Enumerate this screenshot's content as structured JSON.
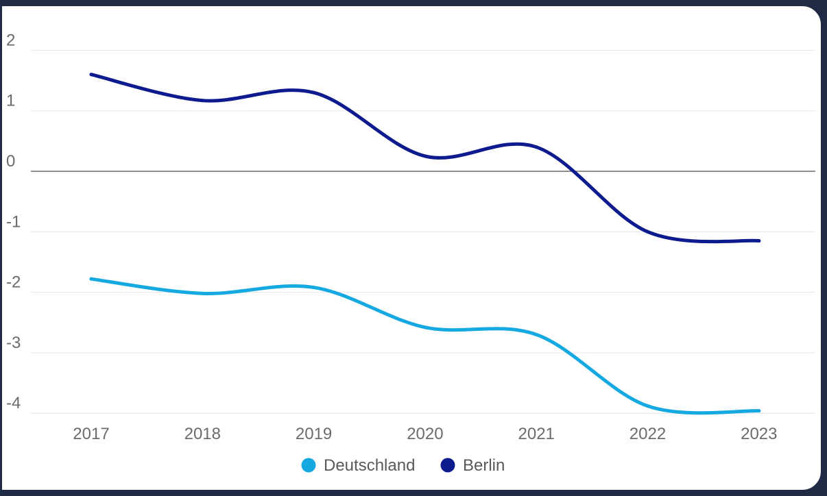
{
  "chart_data": {
    "type": "line",
    "x": [
      "2017",
      "2018",
      "2019",
      "2020",
      "2021",
      "2022",
      "2023"
    ],
    "ylim": [
      -4,
      2
    ],
    "y_ticks": [
      2,
      1,
      0,
      -1,
      -2,
      -3,
      -4
    ],
    "grid": true,
    "legend_position": "bottom",
    "series": [
      {
        "name": "Deutschland",
        "color": "#16a9e1",
        "values": [
          -1.78,
          -2.02,
          -1.92,
          -2.58,
          -2.7,
          -3.88,
          -3.96
        ]
      },
      {
        "name": "Berlin",
        "color": "#0d1b8e",
        "values": [
          1.6,
          1.17,
          1.3,
          0.25,
          0.4,
          -1.0,
          -1.15
        ]
      }
    ]
  }
}
